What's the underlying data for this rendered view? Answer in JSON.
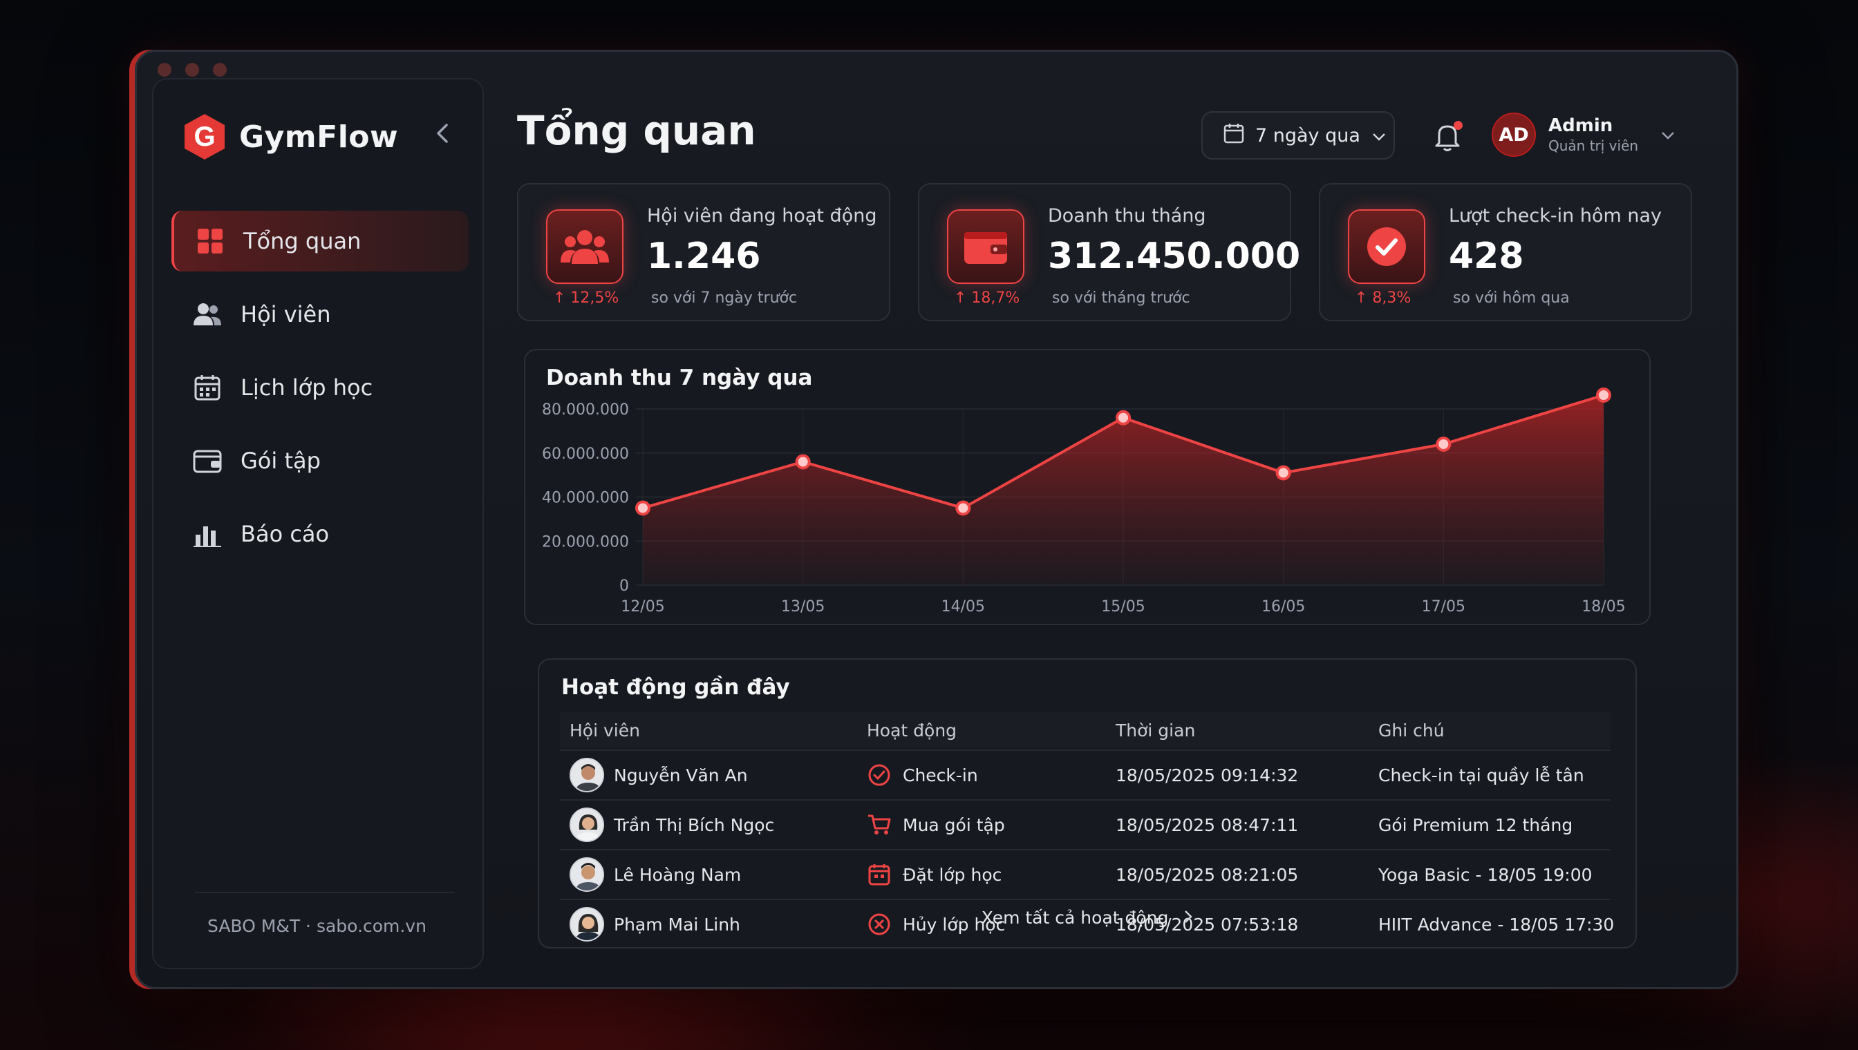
{
  "app": {
    "brand_name": "GymFlow",
    "accent_color": "#ef4444"
  },
  "sidebar": {
    "items": [
      {
        "label": "Tổng quan",
        "icon": "grid-icon",
        "active": true
      },
      {
        "label": "Hội viên",
        "icon": "users-icon"
      },
      {
        "label": "Lịch lớp học",
        "icon": "calendar-icon"
      },
      {
        "label": "Gói tập",
        "icon": "wallet-icon"
      },
      {
        "label": "Báo cáo",
        "icon": "bar-chart-icon"
      }
    ],
    "footer": "SABO M&T · sabo.com.vn"
  },
  "header": {
    "title": "Tổng quan",
    "date_filter": "7 ngày qua",
    "user": {
      "initials": "AD",
      "name": "Admin",
      "role": "Quản trị viên"
    }
  },
  "stats": [
    {
      "label": "Hội viên đang hoạt động",
      "value": "1.246",
      "change": "↑ 12,5%",
      "sub": "so với 7 ngày trước",
      "icon": "users-icon"
    },
    {
      "label": "Doanh thu tháng",
      "value": "312.450.000",
      "change": "↑ 18,7%",
      "sub": "so với tháng trước",
      "icon": "wallet-icon"
    },
    {
      "label": "Lượt check-in hôm nay",
      "value": "428",
      "change": "↑ 8,3%",
      "sub": "so với hôm qua",
      "icon": "check-circle-icon"
    }
  ],
  "chart_data": {
    "type": "area",
    "title": "Doanh thu 7 ngày qua",
    "categories": [
      "12/05",
      "13/05",
      "14/05",
      "15/05",
      "16/05",
      "17/05",
      "18/05"
    ],
    "values": [
      35000000,
      56000000,
      35000000,
      76000000,
      51000000,
      64000000,
      90000000
    ],
    "ylim": [
      0,
      80000000
    ],
    "yticks": [
      "80.000.000",
      "60.000.000",
      "40.000.000",
      "20.000.000",
      "0"
    ],
    "grid": true
  },
  "activity": {
    "title": "Hoạt động gần đây",
    "columns": [
      "Hội viên",
      "Hoạt động",
      "Thời gian",
      "Ghi chú"
    ],
    "rows": [
      {
        "member": "Nguyễn Văn An",
        "action": "Check-in",
        "action_icon": "check-circle-icon",
        "time": "18/05/2025 09:14:32",
        "note": "Check-in tại quầy lễ tân"
      },
      {
        "member": "Trần Thị Bích Ngọc",
        "action": "Mua gói tập",
        "action_icon": "cart-icon",
        "time": "18/05/2025 08:47:11",
        "note": "Gói Premium 12 tháng"
      },
      {
        "member": "Lê Hoàng Nam",
        "action": "Đặt lớp học",
        "action_icon": "calendar-icon",
        "time": "18/05/2025 08:21:05",
        "note": "Yoga Basic - 18/05 19:00"
      },
      {
        "member": "Phạm Mai Linh",
        "action": "Hủy lớp học",
        "action_icon": "x-circle-icon",
        "time": "18/05/2025 07:53:18",
        "note": "HIIT Advance - 18/05 17:30"
      }
    ],
    "view_all": "Xem tất cả hoạt động"
  }
}
